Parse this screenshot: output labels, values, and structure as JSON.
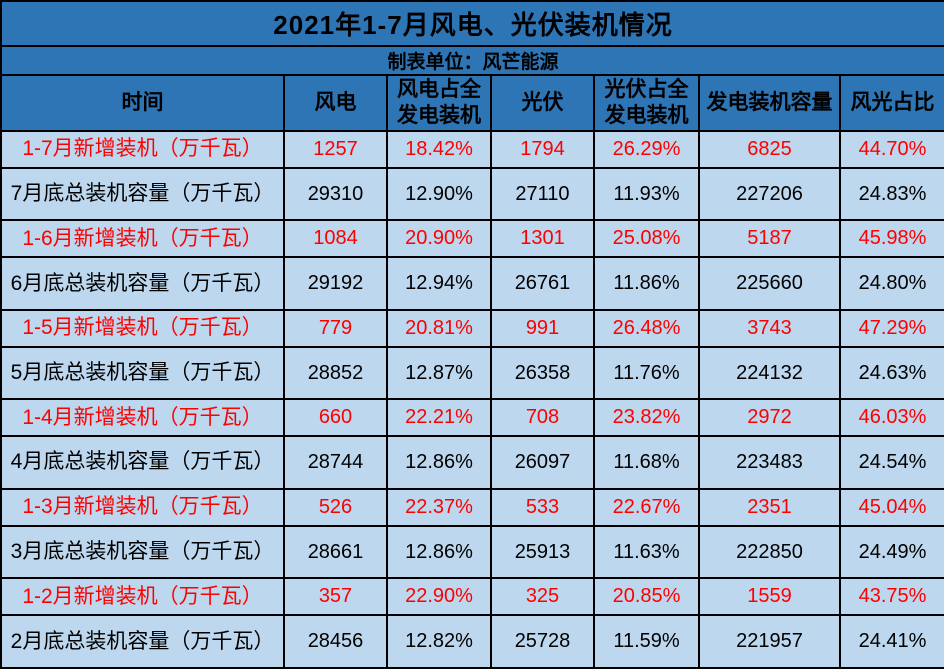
{
  "chart_data": {
    "type": "table",
    "title": "2021年1-7月风电、光伏装机情况",
    "subtitle": "制表单位：风芒能源",
    "columns": [
      "时间",
      "风电",
      "风电占全\n发电装机",
      "光伏",
      "光伏占全\n发电装机",
      "发电装机容量",
      "风光占比"
    ],
    "rows": [
      {
        "label": "1-7月新增装机（万千瓦）",
        "kind": "new",
        "values": [
          "1257",
          "18.42%",
          "1794",
          "26.29%",
          "6825",
          "44.70%"
        ]
      },
      {
        "label": "7月底总装机容量（万千瓦）",
        "kind": "total",
        "values": [
          "29310",
          "12.90%",
          "27110",
          "11.93%",
          "227206",
          "24.83%"
        ]
      },
      {
        "label": "1-6月新增装机（万千瓦）",
        "kind": "new",
        "values": [
          "1084",
          "20.90%",
          "1301",
          "25.08%",
          "5187",
          "45.98%"
        ]
      },
      {
        "label": "6月底总装机容量（万千瓦）",
        "kind": "total",
        "values": [
          "29192",
          "12.94%",
          "26761",
          "11.86%",
          "225660",
          "24.80%"
        ]
      },
      {
        "label": "1-5月新增装机（万千瓦）",
        "kind": "new",
        "values": [
          "779",
          "20.81%",
          "991",
          "26.48%",
          "3743",
          "47.29%"
        ]
      },
      {
        "label": "5月底总装机容量（万千瓦）",
        "kind": "total",
        "values": [
          "28852",
          "12.87%",
          "26358",
          "11.76%",
          "224132",
          "24.63%"
        ]
      },
      {
        "label": "1-4月新增装机（万千瓦）",
        "kind": "new",
        "values": [
          "660",
          "22.21%",
          "708",
          "23.82%",
          "2972",
          "46.03%"
        ]
      },
      {
        "label": "4月底总装机容量（万千瓦）",
        "kind": "total",
        "values": [
          "28744",
          "12.86%",
          "26097",
          "11.68%",
          "223483",
          "24.54%"
        ]
      },
      {
        "label": "1-3月新增装机（万千瓦）",
        "kind": "new",
        "values": [
          "526",
          "22.37%",
          "533",
          "22.67%",
          "2351",
          "45.04%"
        ]
      },
      {
        "label": "3月底总装机容量（万千瓦）",
        "kind": "total",
        "values": [
          "28661",
          "12.86%",
          "25913",
          "11.63%",
          "222850",
          "24.49%"
        ]
      },
      {
        "label": "1-2月新增装机（万千瓦）",
        "kind": "new",
        "values": [
          "357",
          "22.90%",
          "325",
          "20.85%",
          "1559",
          "43.75%"
        ]
      },
      {
        "label": "2月底总装机容量（万千瓦）",
        "kind": "total",
        "values": [
          "28456",
          "12.82%",
          "25728",
          "11.59%",
          "221957",
          "24.41%"
        ]
      }
    ]
  },
  "colors": {
    "header_bg": "#2E75B6",
    "body_bg": "#BDD7EE",
    "new_row_text": "#FF0000",
    "total_row_text": "#000000",
    "border": "#000000"
  }
}
